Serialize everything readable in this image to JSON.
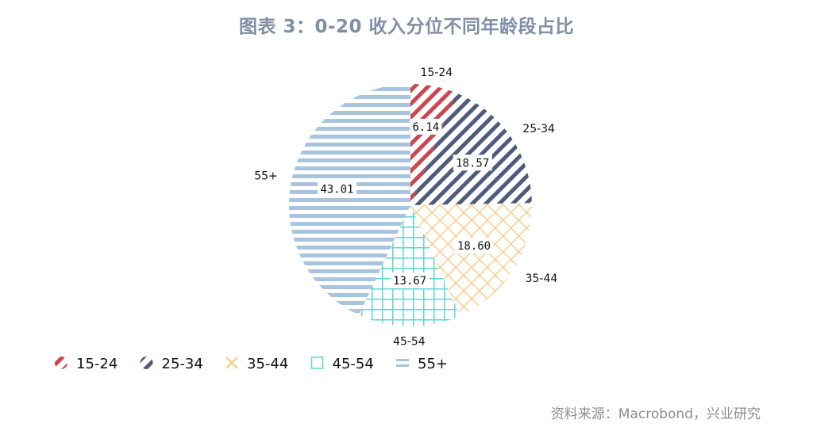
{
  "title": "图表 3：0-20 收入分位不同年龄段占比",
  "source": "资料来源：Macrobond，兴业研究",
  "chart_data": {
    "type": "pie",
    "title": "图表 3：0-20 收入分位不同年龄段占比",
    "legend_position": "bottom-left",
    "slices": [
      {
        "label": "15-24",
        "value": 6.14,
        "value_label": "6.14",
        "color": "#c9474f",
        "pattern": "diag-right"
      },
      {
        "label": "25-34",
        "value": 18.57,
        "value_label": "18.57",
        "color": "#4e5b7b",
        "pattern": "diag-right"
      },
      {
        "label": "35-44",
        "value": 18.6,
        "value_label": "18.60",
        "color": "#f5c779",
        "pattern": "cross-diag"
      },
      {
        "label": "45-54",
        "value": 13.67,
        "value_label": "13.67",
        "color": "#5ad8d4",
        "pattern": "grid"
      },
      {
        "label": "55+",
        "value": 43.01,
        "value_label": "43.01",
        "color": "#a9c4de",
        "pattern": "horizontal"
      }
    ]
  }
}
